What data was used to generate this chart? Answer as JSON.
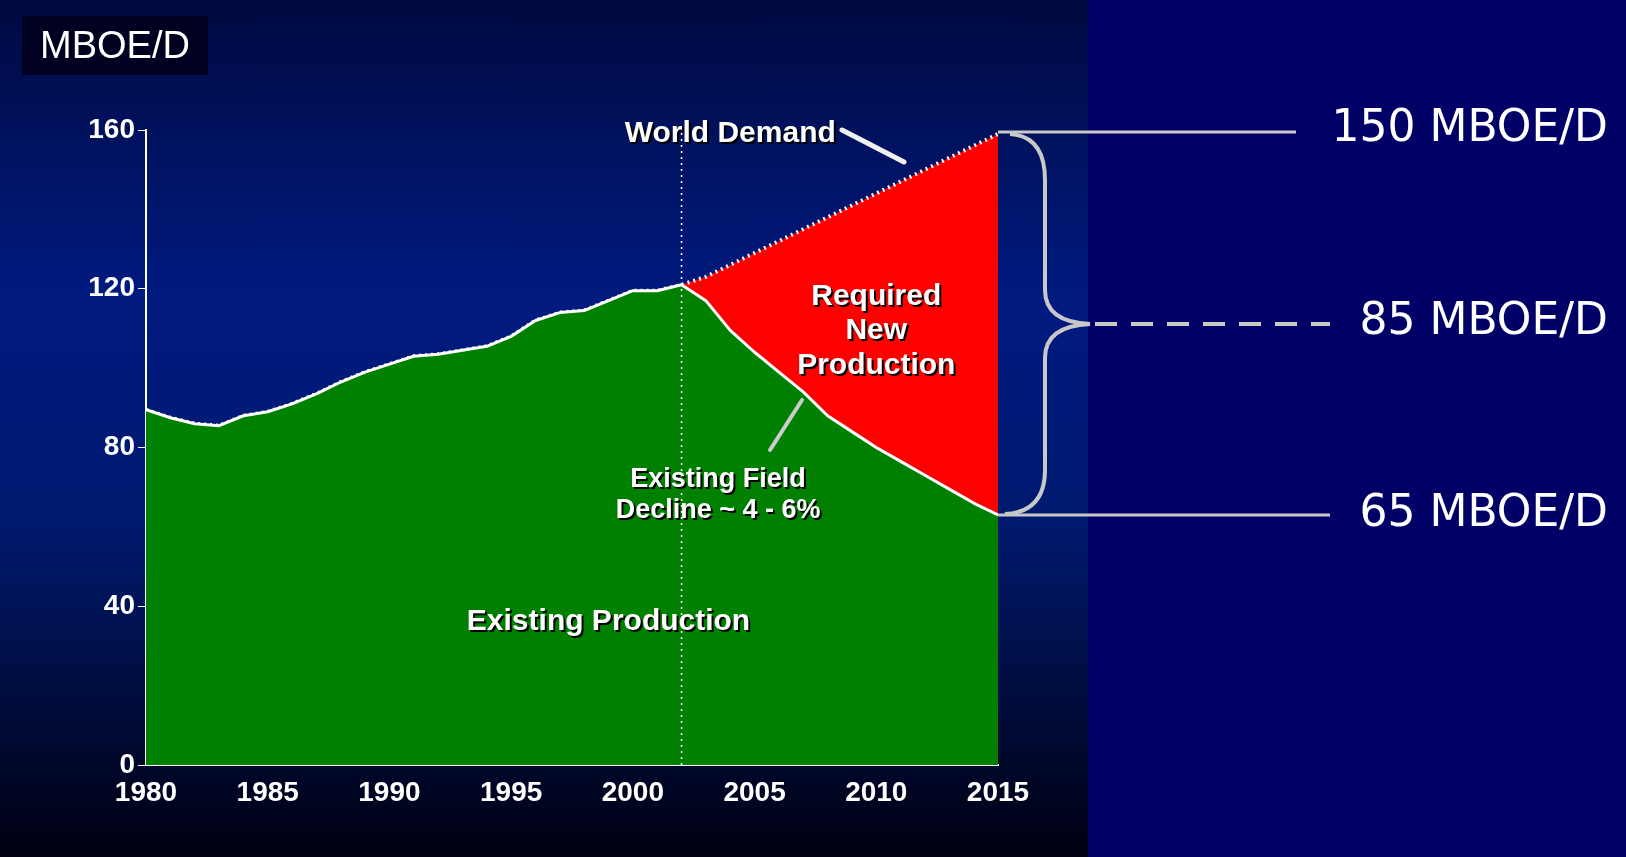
{
  "chart_data": {
    "type": "area",
    "ylabel": "MBOE/D",
    "x": [
      1980,
      1981,
      1982,
      1983,
      1984,
      1985,
      1986,
      1987,
      1988,
      1989,
      1990,
      1991,
      1992,
      1993,
      1994,
      1995,
      1996,
      1997,
      1998,
      1999,
      2000,
      2001,
      2002,
      2003,
      2004,
      2005,
      2006,
      2007,
      2008,
      2009,
      2010,
      2011,
      2012,
      2013,
      2014,
      2015
    ],
    "series": [
      {
        "name": "Existing Production",
        "color": "#008000",
        "values": [
          89.5,
          87.5,
          86,
          85.5,
          88,
          89,
          91,
          93.5,
          96.5,
          99,
          101,
          103,
          103.5,
          104.5,
          105.5,
          108,
          112,
          114,
          114.5,
          117,
          119.5,
          119.5,
          121,
          117,
          109.5,
          104,
          99,
          94,
          88,
          84,
          80,
          76.5,
          73,
          69.5,
          66,
          63
        ]
      },
      {
        "color": "#ff0000",
        "line_style": "dotted",
        "values": [
          89.5,
          87.5,
          86,
          85.5,
          88,
          89,
          91,
          93.5,
          96.5,
          99,
          101,
          103,
          103.5,
          104.5,
          105.5,
          108,
          112,
          114,
          114.5,
          117,
          119.5,
          119.5,
          121,
          123,
          126,
          129,
          132,
          135,
          138,
          141,
          144,
          147,
          150,
          153,
          156,
          159
        ]
      }
    ],
    "xlim": [
      1980,
      2015
    ],
    "xticks": [
      1980,
      1985,
      1990,
      1995,
      2000,
      2005,
      2010,
      2015
    ],
    "ylim": [
      0,
      160
    ],
    "yticks": [
      0,
      40,
      80,
      120,
      160
    ],
    "grid": false,
    "legend": false,
    "ref_lines": [
      {
        "axis": "x",
        "value": 2002,
        "color": "#ffffff",
        "line_style": "dotted"
      }
    ],
    "annotations": [
      "Required New Production",
      "Existing Field Decline ~ 4 - 6%",
      "150 MBOE/D",
      "85 MBOE/D",
      "65 MBOE/D",
      "World Demand"
    ]
  }
}
